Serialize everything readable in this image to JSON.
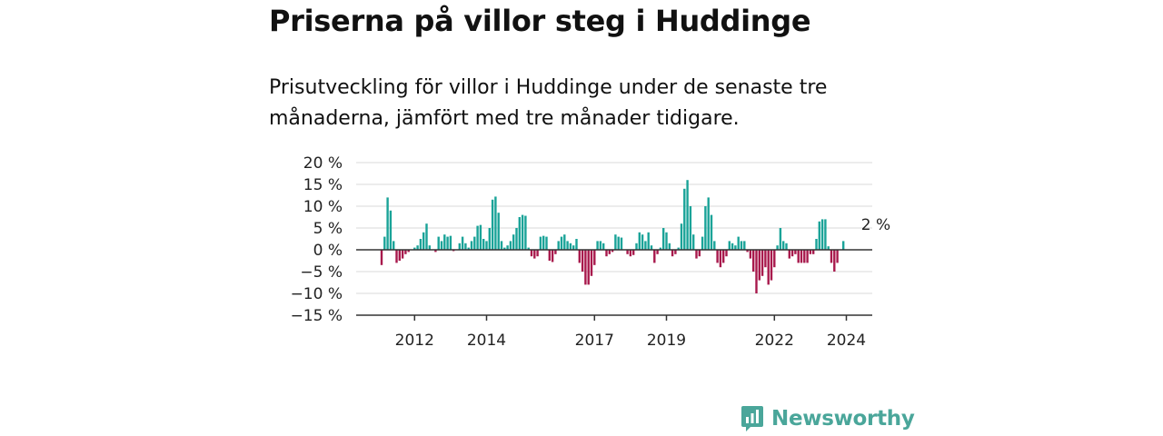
{
  "header": {
    "title": "Priserna på villor steg i Huddinge",
    "subtitle": "Prisutveckling för villor i Huddinge under de senaste tre månaderna, jämfört med tre månader tidigare."
  },
  "colors": {
    "positive": "#1aa398",
    "negative": "#a8194c",
    "brand": "#4aa69a"
  },
  "logo": {
    "text": "Newsworthy",
    "icon": "bar-chart-speech-bubble-icon"
  },
  "chart_data": {
    "type": "bar",
    "y_ticks": [
      20,
      15,
      10,
      5,
      0,
      -5,
      -10,
      -15
    ],
    "y_tick_labels": [
      "20 %",
      "15 %",
      "10 %",
      "5 %",
      "0 %",
      "−5 %",
      "−10 %",
      "−15 %"
    ],
    "ylim": [
      -15,
      20
    ],
    "x_ticks": [
      {
        "label": "2012",
        "month_index": 11
      },
      {
        "label": "2014",
        "month_index": 35
      },
      {
        "label": "2017",
        "month_index": 71
      },
      {
        "label": "2019",
        "month_index": 95
      },
      {
        "label": "2022",
        "month_index": 131
      },
      {
        "label": "2024",
        "month_index": 155
      }
    ],
    "grid": true,
    "annotation": {
      "text": "2 %",
      "month_index": 166
    },
    "values": [
      -3.5,
      3,
      12,
      9,
      2,
      -3,
      -2.5,
      -2,
      -1,
      -0.5,
      0,
      0.5,
      1,
      2.5,
      4,
      6,
      1,
      0,
      -0.5,
      3,
      2,
      3.5,
      3,
      3.2,
      -0.3,
      0,
      1.5,
      3,
      1.5,
      0.5,
      2,
      3,
      5.5,
      5.7,
      2.5,
      2,
      5,
      11.5,
      12.2,
      8.5,
      2,
      0.5,
      1,
      2,
      3.5,
      5,
      7.5,
      8,
      7.8,
      0.5,
      -1.5,
      -2,
      -1.5,
      3,
      3.2,
      3,
      -2.5,
      -2.8,
      -1,
      2,
      3,
      3.5,
      2,
      1.5,
      1,
      2.5,
      -3,
      -5,
      -8,
      -8,
      -6,
      -3.5,
      2,
      2,
      1.5,
      -1.5,
      -1,
      -0.5,
      3.5,
      3,
      2.8,
      0,
      -1,
      -1.5,
      -1.2,
      1.5,
      4,
      3.5,
      2,
      4,
      1,
      -3,
      -1,
      0.5,
      5,
      4,
      1.5,
      -1.5,
      -1,
      0.5,
      6,
      14,
      16,
      10,
      3.5,
      -2,
      -1.5,
      3,
      10,
      12,
      8,
      2,
      -3,
      -4,
      -3,
      -1.5,
      2,
      1.5,
      1,
      3,
      2,
      2,
      -0.5,
      -2,
      -5,
      -10,
      -7,
      -6,
      -4,
      -8,
      -7,
      -4,
      1,
      5,
      2,
      1.5,
      -2,
      -1.5,
      -1,
      -3,
      -3,
      -3,
      -3,
      -1,
      -1,
      2.5,
      6.5,
      7,
      7,
      0.8,
      -3,
      -5,
      -3,
      0,
      2
    ]
  }
}
